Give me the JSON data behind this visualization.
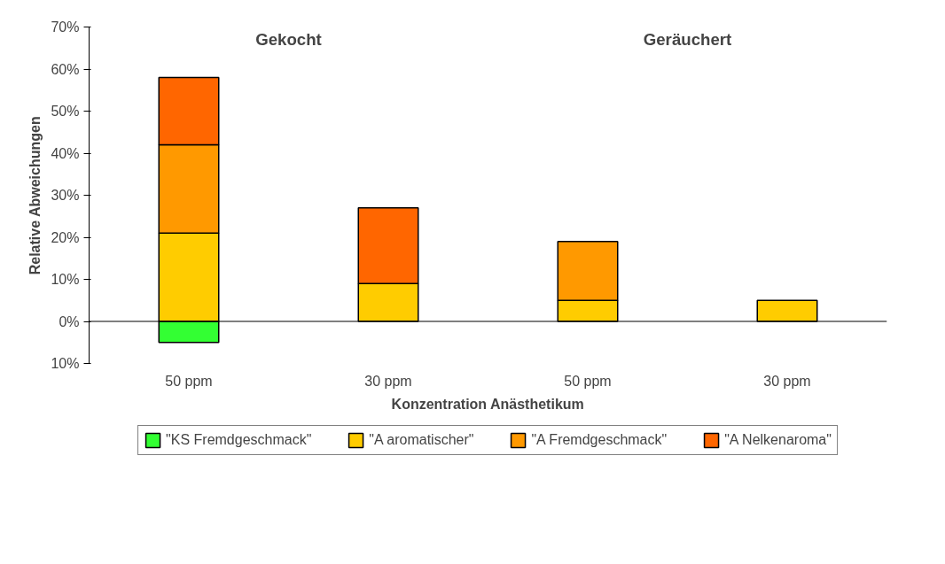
{
  "chart_data": {
    "type": "bar",
    "stacked": true,
    "xlabel": "Konzentration Anästhetikum",
    "ylabel": "Relative Abweichungen",
    "categories": [
      "50 ppm",
      "30 ppm",
      "50 ppm",
      "30 ppm"
    ],
    "series": [
      {
        "name": "\"KS Fremdgeschmack\"",
        "color": "#33ff33",
        "values": [
          -5,
          null,
          null,
          null
        ]
      },
      {
        "name": "\"A aromatischer\"",
        "color": "#ffcc00",
        "values": [
          21,
          9,
          5,
          5
        ]
      },
      {
        "name": "\"A Fremdgeschmack\"",
        "color": "#ff9900",
        "values": [
          21,
          null,
          14,
          null
        ]
      },
      {
        "name": "\"A Nelkenaroma\"",
        "color": "#ff6600",
        "values": [
          16,
          18,
          null,
          null
        ]
      }
    ],
    "annotations": [
      "Gekocht",
      "Geräuchert"
    ],
    "ylim": [
      -10,
      70
    ],
    "yticks": [
      {
        "value": -10,
        "label": "10%"
      },
      {
        "value": 0,
        "label": "0%"
      },
      {
        "value": 10,
        "label": "10%"
      },
      {
        "value": 20,
        "label": "20%"
      },
      {
        "value": 30,
        "label": "30%"
      },
      {
        "value": 40,
        "label": "40%"
      },
      {
        "value": 50,
        "label": "50%"
      },
      {
        "value": 60,
        "label": "60%"
      },
      {
        "value": 70,
        "label": "70%"
      }
    ],
    "legend": "bottom"
  }
}
